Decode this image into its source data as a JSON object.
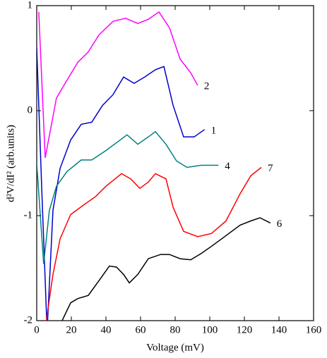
{
  "chart_data": {
    "type": "line",
    "x_label": "Voltage (mV)",
    "y_label": "d²V/dI² (arb.units)",
    "xlim": [
      0,
      160
    ],
    "ylim": [
      -2,
      1
    ],
    "xticks": [
      0,
      20,
      40,
      60,
      80,
      100,
      120,
      140,
      160
    ],
    "yticks": [
      -2,
      -1,
      0,
      1
    ],
    "series": [
      {
        "name": "2",
        "color": "#ff00ff",
        "x": [
          1.2,
          4.9,
          11.4,
          17.5,
          23.7,
          29.8,
          35.9,
          44.1,
          51.4,
          58.4,
          64.5,
          70.6,
          76.7,
          82.9,
          89,
          93
        ],
        "values": [
          0.94,
          -0.45,
          0.12,
          0.29,
          0.46,
          0.56,
          0.72,
          0.85,
          0.88,
          0.83,
          0.87,
          0.94,
          0.79,
          0.49,
          0.36,
          0.24
        ]
      },
      {
        "name": "1",
        "color": "#0000cc",
        "x": [
          0,
          3,
          6,
          9.4,
          13.5,
          19.6,
          25.7,
          31.8,
          38,
          44,
          50.2,
          56.3,
          62.4,
          68.6,
          73.5,
          78.8,
          84.9,
          91,
          97
        ],
        "values": [
          0.6,
          -0.8,
          -2.1,
          -0.95,
          -0.55,
          -0.28,
          -0.13,
          -0.11,
          0.05,
          0.15,
          0.32,
          0.26,
          0.32,
          0.39,
          0.42,
          0.05,
          -0.25,
          -0.25,
          -0.18
        ]
      },
      {
        "name": "4",
        "color": "#008080",
        "x": [
          0,
          4,
          7.3,
          11.4,
          17.5,
          25.7,
          31.8,
          40,
          48.2,
          52.2,
          58.4,
          64.5,
          68.6,
          74.7,
          80.8,
          86.9,
          95,
          105
        ],
        "values": [
          -0.5,
          -1.46,
          -0.95,
          -0.72,
          -0.58,
          -0.47,
          -0.47,
          -0.38,
          -0.28,
          -0.23,
          -0.32,
          -0.25,
          -0.2,
          -0.32,
          -0.48,
          -0.54,
          -0.52,
          -0.52
        ]
      },
      {
        "name": "7",
        "color": "#ff0000",
        "x": [
          5,
          6.5,
          9.4,
          13.5,
          19.6,
          27.8,
          33.9,
          40,
          49,
          54.3,
          59.6,
          64.5,
          68.6,
          74.7,
          78.8,
          84.9,
          93,
          101,
          109.4,
          117.6,
          123.7,
          129.8
        ],
        "values": [
          -2.1,
          -1.89,
          -1.56,
          -1.22,
          -0.99,
          -0.89,
          -0.82,
          -0.72,
          -0.6,
          -0.65,
          -0.74,
          -0.68,
          -0.6,
          -0.65,
          -0.92,
          -1.15,
          -1.2,
          -1.17,
          -1.05,
          -0.79,
          -0.62,
          -0.54
        ]
      },
      {
        "name": "6",
        "color": "#000000",
        "x": [
          14.7,
          19.6,
          23.7,
          29.8,
          35.9,
          42,
          46.1,
          50.2,
          53.5,
          58.4,
          64.5,
          71.6,
          76.7,
          82.9,
          89,
          95.1,
          101.2,
          109.4,
          117.6,
          123.7,
          129,
          135
        ],
        "values": [
          -2.0,
          -1.83,
          -1.79,
          -1.76,
          -1.62,
          -1.48,
          -1.49,
          -1.56,
          -1.64,
          -1.56,
          -1.41,
          -1.37,
          -1.37,
          -1.41,
          -1.42,
          -1.36,
          -1.29,
          -1.19,
          -1.09,
          -1.05,
          -1.02,
          -1.07
        ]
      }
    ]
  }
}
